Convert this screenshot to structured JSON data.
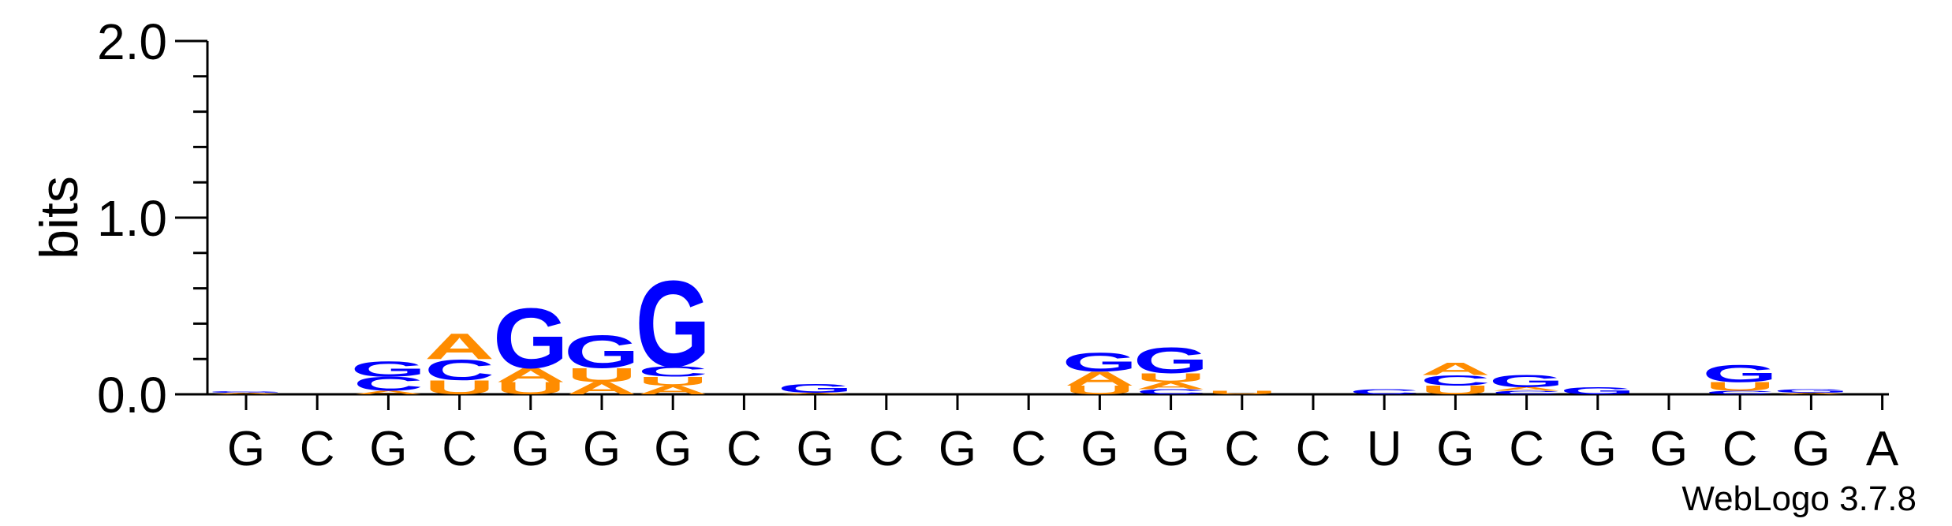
{
  "chart_data": {
    "type": "sequence-logo",
    "ylabel": "bits",
    "ylim": [
      0,
      2.0
    ],
    "yticks": [
      "0.0",
      "1.0",
      "2.0"
    ],
    "credit": "WebLogo 3.7.8",
    "colors": {
      "G": "#0000ff",
      "C": "#0000ff",
      "A": "#ff8c00",
      "U": "#ff8c00"
    },
    "positions": [
      {
        "label": "G",
        "stack": [
          [
            "A",
            0.01
          ],
          [
            "G",
            0.01
          ]
        ]
      },
      {
        "label": "C",
        "stack": []
      },
      {
        "label": "G",
        "stack": [
          [
            "A",
            0.02
          ],
          [
            "C",
            0.08
          ],
          [
            "G",
            0.09
          ]
        ]
      },
      {
        "label": "C",
        "stack": [
          [
            "U",
            0.08
          ],
          [
            "C",
            0.12
          ],
          [
            "A",
            0.15
          ]
        ]
      },
      {
        "label": "G",
        "stack": [
          [
            "U",
            0.07
          ],
          [
            "A",
            0.08
          ],
          [
            "G",
            0.35
          ]
        ]
      },
      {
        "label": "G",
        "stack": [
          [
            "A",
            0.07
          ],
          [
            "U",
            0.08
          ],
          [
            "G",
            0.19
          ]
        ]
      },
      {
        "label": "G",
        "stack": [
          [
            "A",
            0.05
          ],
          [
            "U",
            0.05
          ],
          [
            "C",
            0.06
          ],
          [
            "G",
            0.5
          ]
        ]
      },
      {
        "label": "C",
        "stack": []
      },
      {
        "label": "G",
        "stack": [
          [
            "A",
            0.01
          ],
          [
            "G",
            0.05
          ]
        ]
      },
      {
        "label": "C",
        "stack": []
      },
      {
        "label": "G",
        "stack": []
      },
      {
        "label": "C",
        "stack": []
      },
      {
        "label": "G",
        "stack": [
          [
            "U",
            0.05
          ],
          [
            "A",
            0.08
          ],
          [
            "G",
            0.11
          ]
        ]
      },
      {
        "label": "G",
        "stack": [
          [
            "C",
            0.03
          ],
          [
            "A",
            0.04
          ],
          [
            "U",
            0.05
          ],
          [
            "G",
            0.15
          ]
        ]
      },
      {
        "label": "C",
        "stack": [
          [
            "U",
            0.02
          ]
        ]
      },
      {
        "label": "C",
        "stack": []
      },
      {
        "label": "U",
        "stack": [
          [
            "C",
            0.03
          ]
        ]
      },
      {
        "label": "G",
        "stack": [
          [
            "U",
            0.05
          ],
          [
            "C",
            0.06
          ],
          [
            "A",
            0.07
          ]
        ]
      },
      {
        "label": "C",
        "stack": [
          [
            "C",
            0.02
          ],
          [
            "A",
            0.02
          ],
          [
            "G",
            0.07
          ]
        ]
      },
      {
        "label": "G",
        "stack": [
          [
            "G",
            0.04
          ]
        ]
      },
      {
        "label": "G",
        "stack": []
      },
      {
        "label": "C",
        "stack": [
          [
            "C",
            0.02
          ],
          [
            "U",
            0.05
          ],
          [
            "G",
            0.1
          ]
        ]
      },
      {
        "label": "G",
        "stack": [
          [
            "A",
            0.01
          ],
          [
            "G",
            0.02
          ]
        ]
      },
      {
        "label": "A",
        "stack": []
      }
    ]
  }
}
